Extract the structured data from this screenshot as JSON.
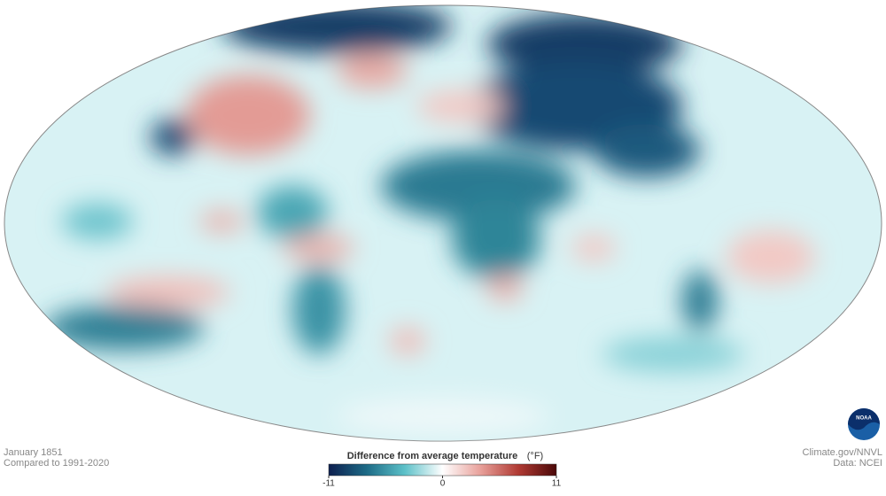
{
  "date": "January 1851",
  "baseline": "Compared to 1991-2020",
  "credit": "Climate.gov/NNVL",
  "source": "Data: NCEI",
  "logo": "NOAA",
  "legend": {
    "title": "Difference from average temperature",
    "unit": "(°F)",
    "range": [
      -11,
      11
    ],
    "ticks": [
      -11,
      0,
      11
    ],
    "colors": [
      "#0d1f4f",
      "#1d6b86",
      "#5cc0c8",
      "#ffffff",
      "#e8a09a",
      "#b03a33",
      "#4a0808"
    ]
  }
}
